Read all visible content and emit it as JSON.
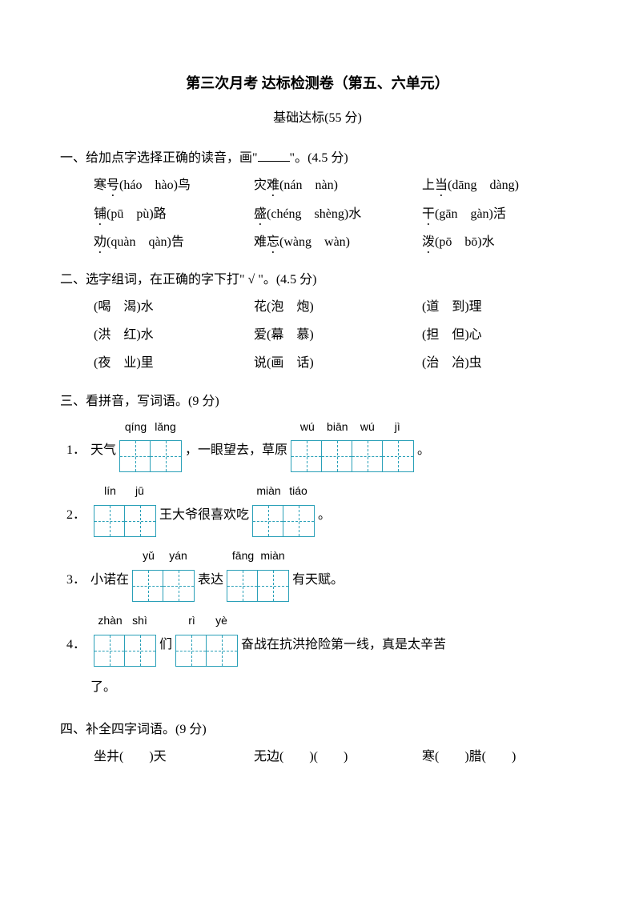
{
  "title": "第三次月考 达标检测卷（第五、六单元）",
  "subtitle": "基础达标(55 分)",
  "q1": {
    "head_pre": "一、给加点字选择正确的读音，画\"",
    "head_post": "\"。(4.5 分)",
    "rows": [
      [
        {
          "pre": "寒",
          "dot": "号",
          "post": "(háo　hào)鸟"
        },
        {
          "pre": "灾",
          "dot": "难",
          "post": "(nán　nàn)"
        },
        {
          "pre": "上",
          "dot": "当",
          "post": "(dāng　dàng)"
        }
      ],
      [
        {
          "pre": "",
          "dot": "铺",
          "post": "(pū　pù)路"
        },
        {
          "pre": "",
          "dot": "盛",
          "post": "(chéng　shèng)水"
        },
        {
          "pre": "",
          "dot": "干",
          "post": "(gān　gàn)活"
        }
      ],
      [
        {
          "pre": "",
          "dot": "劝",
          "post": "(quàn　qàn)告"
        },
        {
          "pre": "难",
          "dot": "忘",
          "post": "(wàng　wàn)"
        },
        {
          "pre": "",
          "dot": "泼",
          "post": "(pō　bō)水"
        }
      ]
    ]
  },
  "q2": {
    "head": "二、选字组词，在正确的字下打\" √ \"。(4.5 分)",
    "rows": [
      [
        "(喝　渴)水",
        "花(泡　炮)",
        "(道　到)理"
      ],
      [
        "(洪　红)水",
        "爱(幕　慕)",
        "(担　但)心"
      ],
      [
        "(夜　业)里",
        "说(画　话)",
        "(治　冶)虫"
      ]
    ]
  },
  "q3": {
    "head": "三、看拼音，写词语。(9 分)",
    "items": [
      {
        "num": "1．",
        "parts": [
          {
            "text": "天气"
          },
          {
            "grid": {
              "pinyin": [
                "qíng",
                "lǎng"
              ],
              "n": 2
            }
          },
          {
            "text": "，一眼望去，草原"
          },
          {
            "grid": {
              "pinyin": [
                "wú",
                "biān",
                "wú",
                "jì"
              ],
              "n": 4
            }
          },
          {
            "text": "。"
          }
        ]
      },
      {
        "num": "2．",
        "parts": [
          {
            "grid": {
              "pinyin": [
                "lín",
                "jū"
              ],
              "n": 2
            }
          },
          {
            "text": "王大爷很喜欢吃"
          },
          {
            "grid": {
              "pinyin": [
                "miàn",
                "tiáo"
              ],
              "n": 2
            }
          },
          {
            "text": "。"
          }
        ]
      },
      {
        "num": "3．",
        "parts": [
          {
            "text": "小诺在"
          },
          {
            "grid": {
              "pinyin": [
                "yǔ",
                "yán"
              ],
              "n": 2
            }
          },
          {
            "text": "表达"
          },
          {
            "grid": {
              "pinyin": [
                "fāng",
                "miàn"
              ],
              "n": 2
            }
          },
          {
            "text": "有天赋。"
          }
        ]
      },
      {
        "num": "4．",
        "parts": [
          {
            "grid": {
              "pinyin": [
                "zhàn",
                "shì"
              ],
              "n": 2
            }
          },
          {
            "text": "们"
          },
          {
            "grid": {
              "pinyin": [
                "rì",
                "yè"
              ],
              "n": 2
            }
          },
          {
            "text": "奋战在抗洪抢险第一线，真是太辛苦"
          }
        ],
        "cont": "了。"
      }
    ]
  },
  "q4": {
    "head": "四、补全四字词语。(9 分)",
    "row": [
      "坐井(　　)天",
      "无边(　　)(　　)",
      "寒(　　)腊(　　)"
    ]
  }
}
